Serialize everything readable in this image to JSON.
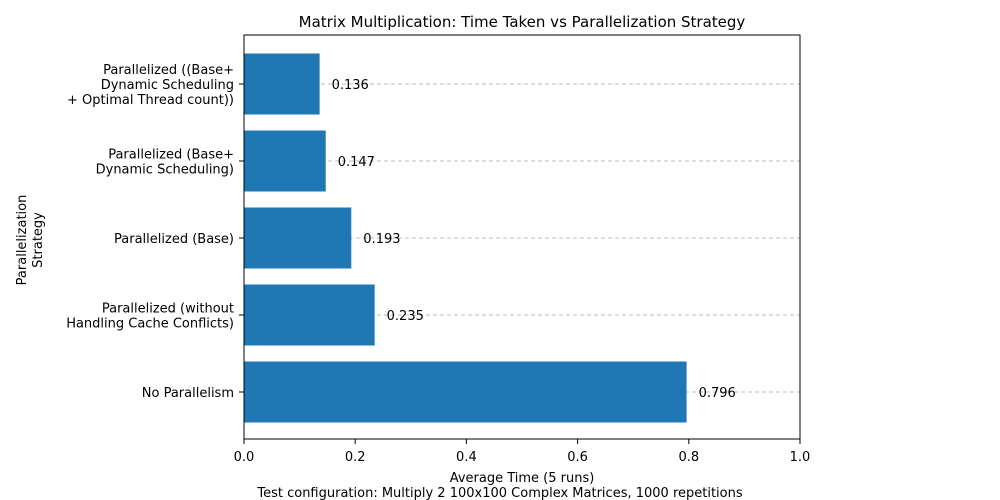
{
  "chart_data": {
    "type": "bar",
    "orientation": "horizontal",
    "title": "Matrix Multiplication: Time Taken vs Parallelization Strategy",
    "xlabel": "Average Time (5 runs)",
    "ylabel_lines": [
      "Parallelization",
      "Strategy"
    ],
    "footer": "Test configuration: Multiply 2 100x100 Complex Matrices, 1000 repetitions",
    "xlim": [
      0,
      1.0
    ],
    "xticks": [
      "0.0",
      "0.2",
      "0.4",
      "0.6",
      "0.8",
      "1.0"
    ],
    "grid": "x-dashed",
    "bar_color": "#1f77b4",
    "categories": [
      {
        "lines": [
          "No Parallelism"
        ],
        "value": 0.796,
        "label": "0.796"
      },
      {
        "lines": [
          "Parallelized (without",
          "Handling Cache Conflicts)"
        ],
        "value": 0.235,
        "label": "0.235"
      },
      {
        "lines": [
          "Parallelized (Base)"
        ],
        "value": 0.193,
        "label": "0.193"
      },
      {
        "lines": [
          "Parallelized (Base+",
          "Dynamic Scheduling)"
        ],
        "value": 0.147,
        "label": "0.147"
      },
      {
        "lines": [
          "Parallelized ((Base+",
          "Dynamic Scheduling",
          "+ Optimal Thread count))"
        ],
        "value": 0.136,
        "label": "0.136"
      }
    ]
  }
}
